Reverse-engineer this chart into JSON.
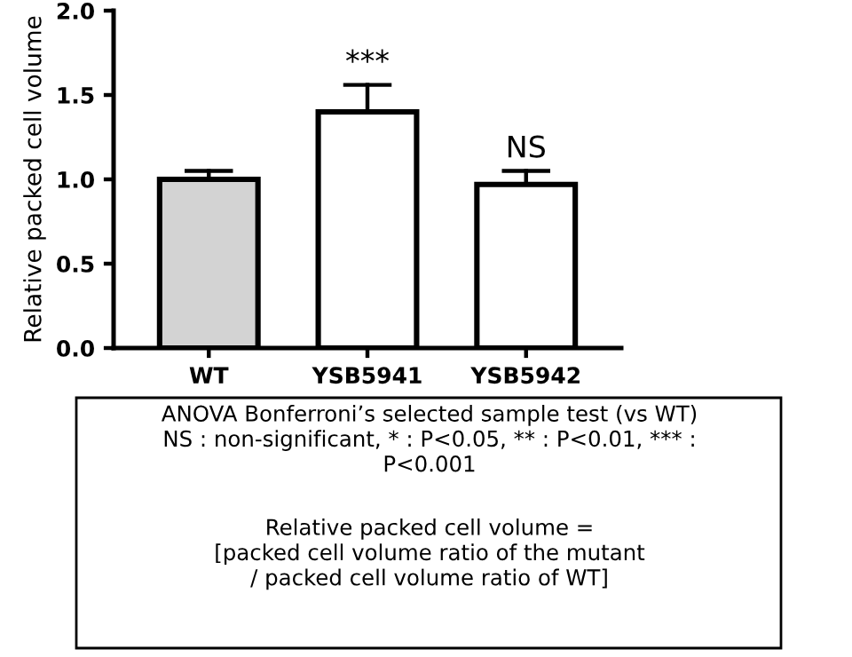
{
  "chart_data": {
    "type": "bar",
    "ylabel": "Relative packed cell volume",
    "categories": [
      "WT",
      "YSB5941",
      "YSB5942"
    ],
    "values": [
      1.0,
      1.4,
      0.97
    ],
    "colors": [
      "#d3d3d3",
      "#ffffff",
      "#ffffff"
    ],
    "errors": [
      [
        1.0,
        1.05
      ],
      [
        1.4,
        1.56
      ],
      [
        0.97,
        1.05
      ]
    ],
    "ylim": [
      0,
      2.0
    ],
    "yticks": [
      {
        "value": 0,
        "label": "0.0"
      },
      {
        "value": 0.5,
        "label": "0.5"
      },
      {
        "value": 1,
        "label": "1.0"
      },
      {
        "value": 1.5,
        "label": "1.5"
      },
      {
        "value": 2,
        "label": "2.0"
      }
    ],
    "grid": false,
    "legend": false,
    "annotations": [
      {
        "text": "***",
        "x": "YSB5941",
        "y": 1.56
      },
      {
        "text": "NS",
        "x": "YSB5942",
        "y": 1.05
      },
      "ANOVA Bonferroni’s selected sample test (vs WT)\nNS : non-significant, * : P<0.05, ** : P<0.01, *** :\nP<0.001",
      "Relative packed cell volume =\n[packed cell volume ratio of the mutant\n/ packed cell volume ratio of WT]"
    ]
  }
}
